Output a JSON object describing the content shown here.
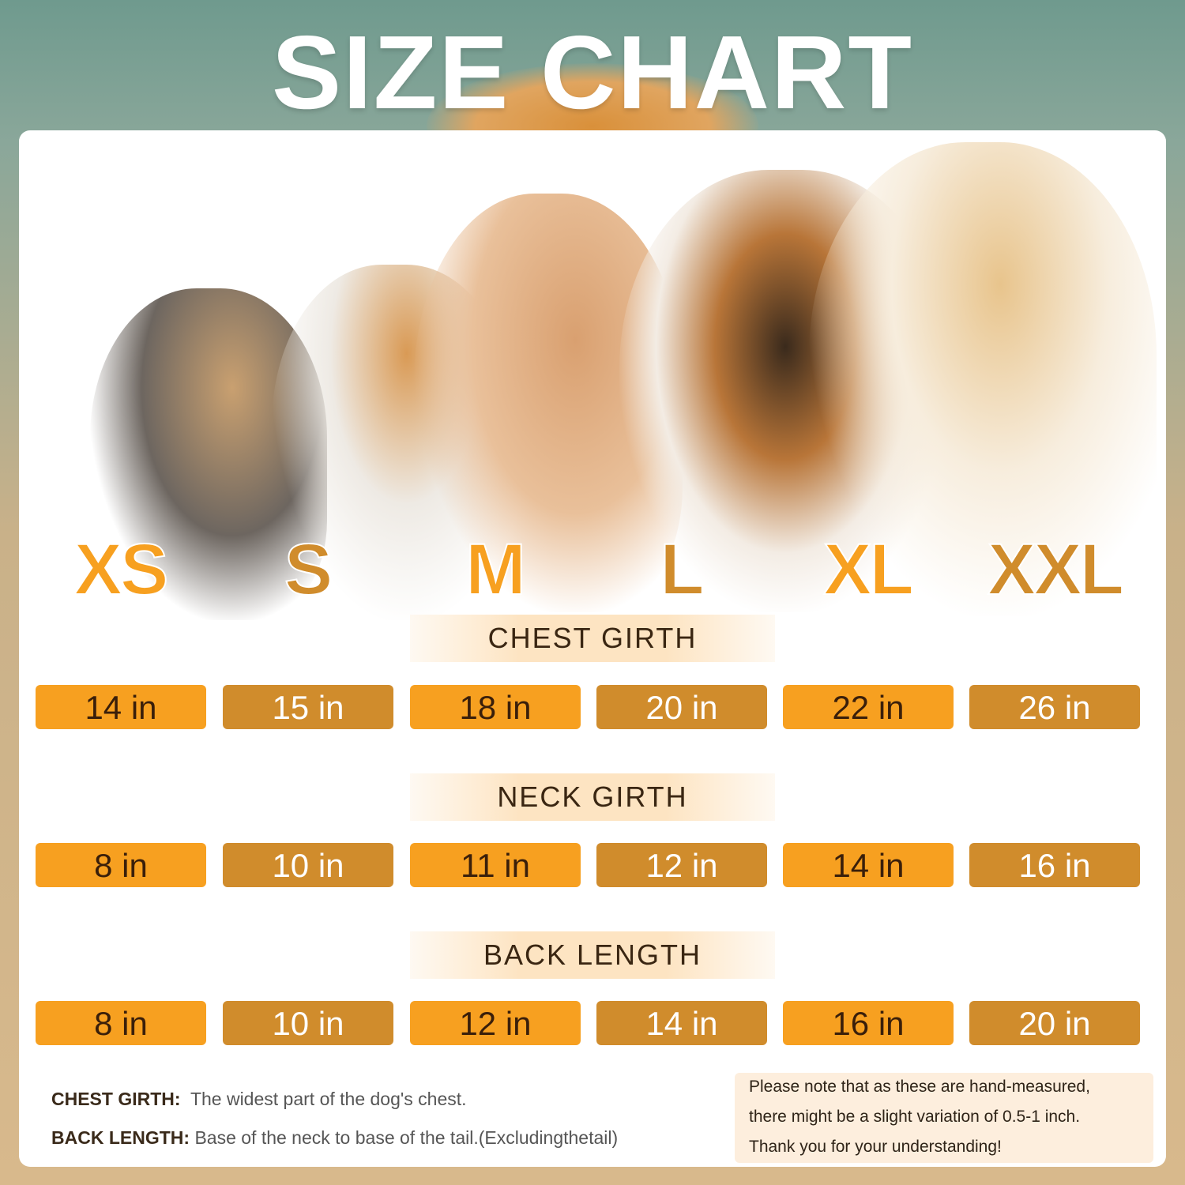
{
  "title": "SIZE CHART",
  "colors": {
    "orange": "#f7a020",
    "dark_orange": "#d08c2c",
    "text_dark": "#3a1f0a"
  },
  "sizes": [
    "XS",
    "S",
    "M",
    "L",
    "XL",
    "XXL"
  ],
  "sections": [
    {
      "label": "CHEST GIRTH",
      "values": [
        "14 in",
        "15 in",
        "18 in",
        "20 in",
        "22 in",
        "26 in"
      ]
    },
    {
      "label": "NECK GIRTH",
      "values": [
        "8 in",
        "10 in",
        "11 in",
        "12 in",
        "14 in",
        "16 in"
      ]
    },
    {
      "label": "BACK LENGTH",
      "values": [
        "8 in",
        "10 in",
        "12 in",
        "14 in",
        "16 in",
        "20 in"
      ]
    }
  ],
  "definitions": [
    {
      "term": "CHEST GIRTH:",
      "text": "The widest part of the dog's chest."
    },
    {
      "term": "BACK LENGTH:",
      "text": "Base of the neck to base of the tail.(Excludingthetail)"
    }
  ],
  "note": [
    "Please note that as these are hand-measured,",
    "there might be a slight variation of 0.5-1 inch.",
    "Thank you for your understanding!"
  ]
}
